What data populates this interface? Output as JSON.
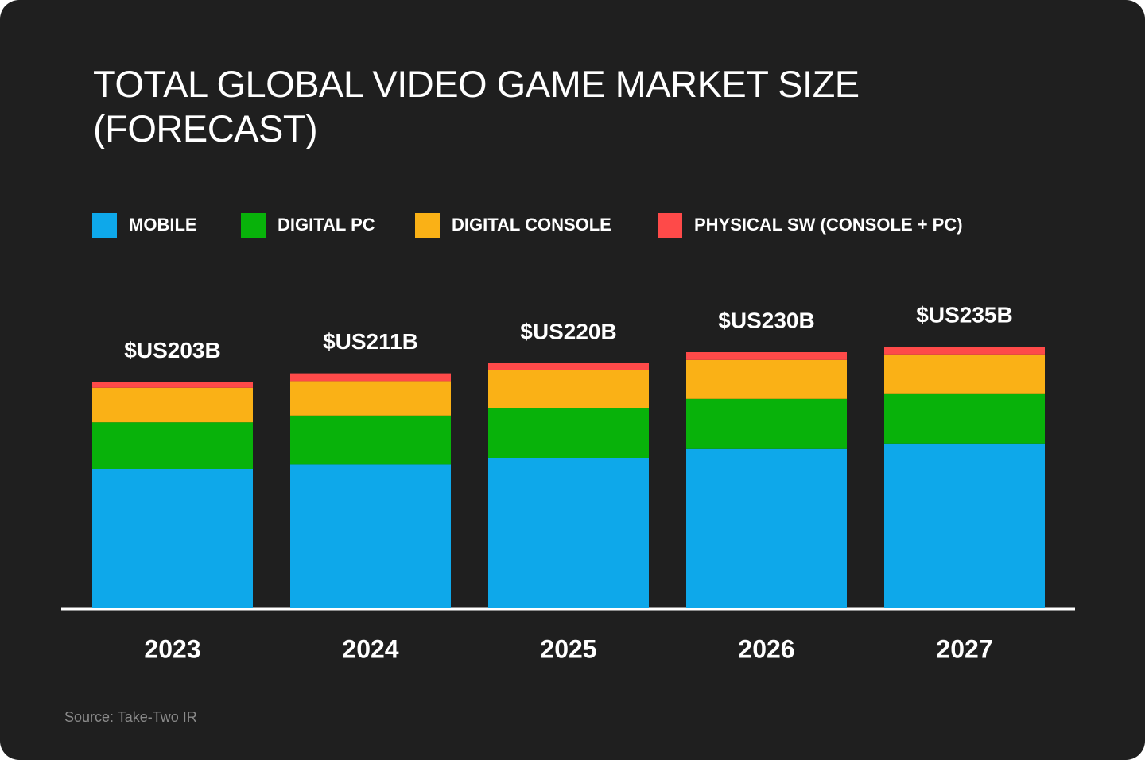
{
  "chart_data": {
    "type": "stacked_bar",
    "title": "TOTAL GLOBAL VIDEO GAME MARKET SIZE (FORECAST)",
    "categories": [
      "2023",
      "2024",
      "2025",
      "2026",
      "2027"
    ],
    "series": [
      {
        "name": "MOBILE",
        "color": "#0ea8ea",
        "values": [
          125,
          129,
          135,
          143,
          148
        ]
      },
      {
        "name": "DIGITAL PC",
        "color": "#08b20a",
        "values": [
          42,
          44,
          45,
          45,
          45
        ]
      },
      {
        "name": "DIGITAL CONSOLE",
        "color": "#fab116",
        "values": [
          31,
          31,
          34,
          35,
          35
        ]
      },
      {
        "name": "PHYSICAL SW (CONSOLE + PC)",
        "color": "#fe4a49",
        "values": [
          5,
          7,
          6,
          7,
          7
        ]
      }
    ],
    "totals": {
      "values": [
        203,
        211,
        220,
        230,
        235
      ],
      "value_labels": [
        "$US203B",
        "$US211B",
        "$US220B",
        "$US230B",
        "$US235B"
      ]
    },
    "source": "Source: Take-Two IR"
  }
}
